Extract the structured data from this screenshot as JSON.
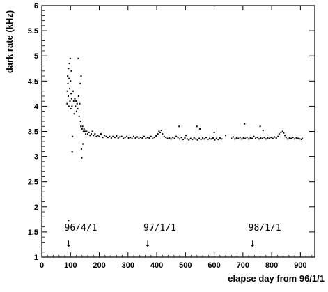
{
  "chart_data": {
    "type": "scatter",
    "title": "",
    "xlabel": "elapse day from 96/1/1",
    "ylabel": "dark rate (kHz)",
    "xlim": [
      0,
      950
    ],
    "ylim": [
      1,
      6
    ],
    "x_ticks": [
      0,
      100,
      200,
      300,
      400,
      500,
      600,
      700,
      800,
      900
    ],
    "y_ticks": [
      1,
      1.5,
      2,
      2.5,
      3,
      3.5,
      4,
      4.5,
      5,
      5.5,
      6
    ],
    "grid": false,
    "marker_color": "#000000",
    "annotations": [
      {
        "text": "96/4/1",
        "x": 91,
        "arrow": "↓"
      },
      {
        "text": "97/1/1",
        "x": 366,
        "arrow": "↓"
      },
      {
        "text": "98/1/1",
        "x": 731,
        "arrow": "↓"
      }
    ],
    "points": [
      [
        88,
        4.05
      ],
      [
        89,
        4.3
      ],
      [
        90,
        4.6
      ],
      [
        91,
        4.45
      ],
      [
        92,
        4.2
      ],
      [
        93,
        4.75
      ],
      [
        94,
        4.0
      ],
      [
        95,
        4.55
      ],
      [
        96,
        4.85
      ],
      [
        97,
        4.35
      ],
      [
        98,
        4.1
      ],
      [
        99,
        4.95
      ],
      [
        100,
        4.5
      ],
      [
        101,
        3.95
      ],
      [
        102,
        4.25
      ],
      [
        103,
        4.7
      ],
      [
        104,
        4.15
      ],
      [
        105,
        4.0
      ],
      [
        106,
        3.1
      ],
      [
        107,
        3.4
      ],
      [
        109,
        4.3
      ],
      [
        111,
        4.1
      ],
      [
        113,
        3.85
      ],
      [
        115,
        4.15
      ],
      [
        117,
        4.0
      ],
      [
        119,
        4.1
      ],
      [
        121,
        3.9
      ],
      [
        123,
        4.05
      ],
      [
        125,
        3.95
      ],
      [
        127,
        4.95
      ],
      [
        128,
        4.2
      ],
      [
        130,
        3.8
      ],
      [
        132,
        4.05
      ],
      [
        134,
        4.45
      ],
      [
        135,
        3.7
      ],
      [
        136,
        3.6
      ],
      [
        137,
        4.6
      ],
      [
        138,
        3.15
      ],
      [
        139,
        2.97
      ],
      [
        140,
        3.55
      ],
      [
        142,
        3.6
      ],
      [
        143,
        3.25
      ],
      [
        145,
        3.5
      ],
      [
        147,
        3.55
      ],
      [
        150,
        3.5
      ],
      [
        153,
        3.45
      ],
      [
        156,
        3.5
      ],
      [
        160,
        3.45
      ],
      [
        164,
        3.48
      ],
      [
        168,
        3.42
      ],
      [
        172,
        3.45
      ],
      [
        176,
        3.5
      ],
      [
        180,
        3.42
      ],
      [
        185,
        3.45
      ],
      [
        190,
        3.4
      ],
      [
        195,
        3.42
      ],
      [
        200,
        3.4
      ],
      [
        206,
        3.45
      ],
      [
        212,
        3.38
      ],
      [
        218,
        3.42
      ],
      [
        224,
        3.4
      ],
      [
        230,
        3.38
      ],
      [
        236,
        3.4
      ],
      [
        242,
        3.37
      ],
      [
        248,
        3.4
      ],
      [
        254,
        3.38
      ],
      [
        260,
        3.41
      ],
      [
        266,
        3.37
      ],
      [
        272,
        3.39
      ],
      [
        278,
        3.4
      ],
      [
        284,
        3.36
      ],
      [
        290,
        3.38
      ],
      [
        296,
        3.4
      ],
      [
        302,
        3.37
      ],
      [
        308,
        3.38
      ],
      [
        314,
        3.36
      ],
      [
        320,
        3.4
      ],
      [
        326,
        3.37
      ],
      [
        332,
        3.39
      ],
      [
        338,
        3.36
      ],
      [
        344,
        3.38
      ],
      [
        350,
        3.37
      ],
      [
        356,
        3.4
      ],
      [
        362,
        3.36
      ],
      [
        368,
        3.38
      ],
      [
        374,
        3.37
      ],
      [
        380,
        3.4
      ],
      [
        386,
        3.36
      ],
      [
        392,
        3.38
      ],
      [
        398,
        3.41
      ],
      [
        404,
        3.45
      ],
      [
        408,
        3.5
      ],
      [
        412,
        3.48
      ],
      [
        416,
        3.52
      ],
      [
        420,
        3.45
      ],
      [
        426,
        3.4
      ],
      [
        432,
        3.38
      ],
      [
        438,
        3.36
      ],
      [
        444,
        3.37
      ],
      [
        450,
        3.35
      ],
      [
        456,
        3.38
      ],
      [
        462,
        3.36
      ],
      [
        468,
        3.4
      ],
      [
        474,
        3.38
      ],
      [
        478,
        3.6
      ],
      [
        480,
        3.35
      ],
      [
        486,
        3.38
      ],
      [
        492,
        3.34
      ],
      [
        498,
        3.37
      ],
      [
        502,
        3.42
      ],
      [
        506,
        3.35
      ],
      [
        512,
        3.33
      ],
      [
        518,
        3.36
      ],
      [
        524,
        3.34
      ],
      [
        530,
        3.37
      ],
      [
        536,
        3.35
      ],
      [
        542,
        3.33
      ],
      [
        548,
        3.36
      ],
      [
        554,
        3.34
      ],
      [
        560,
        3.37
      ],
      [
        566,
        3.35
      ],
      [
        572,
        3.38
      ],
      [
        578,
        3.34
      ],
      [
        584,
        3.36
      ],
      [
        590,
        3.35
      ],
      [
        596,
        3.37
      ],
      [
        602,
        3.33
      ],
      [
        608,
        3.36
      ],
      [
        614,
        3.34
      ],
      [
        620,
        3.37
      ],
      [
        626,
        3.35
      ],
      [
        540,
        3.6
      ],
      [
        550,
        3.55
      ],
      [
        600,
        3.48
      ],
      [
        660,
        3.36
      ],
      [
        666,
        3.39
      ],
      [
        672,
        3.35
      ],
      [
        678,
        3.37
      ],
      [
        684,
        3.36
      ],
      [
        690,
        3.38
      ],
      [
        696,
        3.35
      ],
      [
        702,
        3.37
      ],
      [
        706,
        3.65
      ],
      [
        708,
        3.36
      ],
      [
        714,
        3.38
      ],
      [
        720,
        3.35
      ],
      [
        726,
        3.37
      ],
      [
        732,
        3.36
      ],
      [
        738,
        3.4
      ],
      [
        744,
        3.36
      ],
      [
        750,
        3.38
      ],
      [
        756,
        3.35
      ],
      [
        762,
        3.37
      ],
      [
        768,
        3.36
      ],
      [
        774,
        3.38
      ],
      [
        780,
        3.35
      ],
      [
        786,
        3.37
      ],
      [
        792,
        3.36
      ],
      [
        798,
        3.38
      ],
      [
        804,
        3.36
      ],
      [
        810,
        3.39
      ],
      [
        816,
        3.37
      ],
      [
        822,
        3.4
      ],
      [
        826,
        3.45
      ],
      [
        832,
        3.48
      ],
      [
        838,
        3.5
      ],
      [
        842,
        3.47
      ],
      [
        846,
        3.42
      ],
      [
        850,
        3.38
      ],
      [
        856,
        3.35
      ],
      [
        862,
        3.37
      ],
      [
        868,
        3.36
      ],
      [
        874,
        3.38
      ],
      [
        880,
        3.35
      ],
      [
        886,
        3.37
      ],
      [
        892,
        3.36
      ],
      [
        898,
        3.35
      ],
      [
        904,
        3.34
      ],
      [
        906,
        3.36
      ],
      [
        93,
        1.73
      ],
      [
        640,
        3.42
      ],
      [
        760,
        3.6
      ],
      [
        770,
        3.52
      ]
    ]
  }
}
